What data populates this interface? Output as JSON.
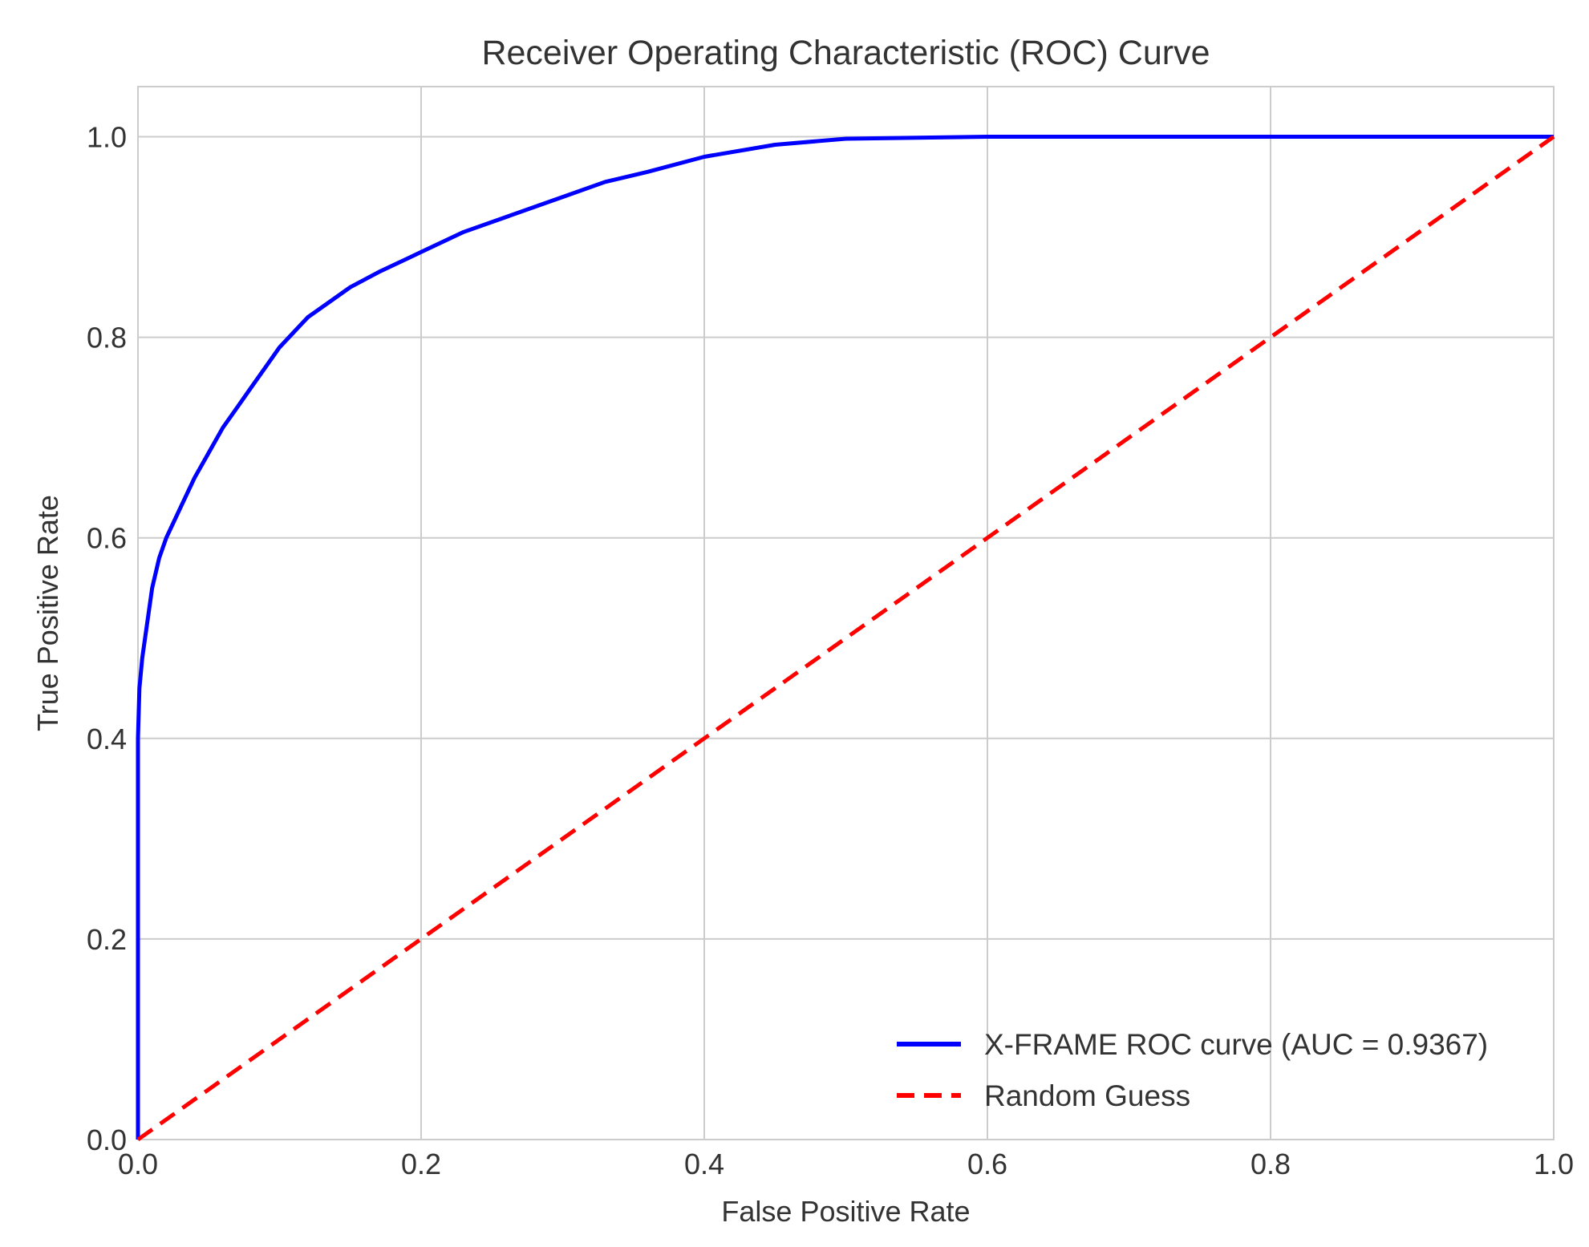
{
  "chart_data": {
    "type": "line",
    "title": "Receiver Operating Characteristic (ROC) Curve",
    "xlabel": "False Positive Rate",
    "ylabel": "True Positive Rate",
    "xlim": [
      0.0,
      1.0
    ],
    "ylim": [
      0.0,
      1.05
    ],
    "xticks": [
      0.0,
      0.2,
      0.4,
      0.6,
      0.8,
      1.0
    ],
    "xtick_labels": [
      "0.0",
      "0.2",
      "0.4",
      "0.6",
      "0.8",
      "1.0"
    ],
    "yticks": [
      0.0,
      0.2,
      0.4,
      0.6,
      0.8,
      1.0
    ],
    "ytick_labels": [
      "0.0",
      "0.2",
      "0.4",
      "0.6",
      "0.8",
      "1.0"
    ],
    "grid": true,
    "legend_position": "lower-right",
    "series": [
      {
        "name": "X-FRAME ROC curve (AUC = 0.9367)",
        "color": "#0000ff",
        "style": "solid",
        "x": [
          0.0,
          0.0,
          0.001,
          0.003,
          0.006,
          0.01,
          0.015,
          0.02,
          0.03,
          0.04,
          0.05,
          0.06,
          0.07,
          0.08,
          0.09,
          0.1,
          0.11,
          0.12,
          0.13,
          0.15,
          0.17,
          0.2,
          0.23,
          0.26,
          0.3,
          0.33,
          0.36,
          0.4,
          0.45,
          0.5,
          0.55,
          0.6,
          0.7,
          0.8,
          0.9,
          1.0
        ],
        "y": [
          0.0,
          0.4,
          0.45,
          0.48,
          0.51,
          0.55,
          0.58,
          0.6,
          0.63,
          0.66,
          0.685,
          0.71,
          0.73,
          0.75,
          0.77,
          0.79,
          0.805,
          0.82,
          0.83,
          0.85,
          0.865,
          0.885,
          0.905,
          0.92,
          0.94,
          0.955,
          0.965,
          0.98,
          0.992,
          0.998,
          0.999,
          1.0,
          1.0,
          1.0,
          1.0,
          1.0
        ]
      },
      {
        "name": "Random Guess",
        "color": "#ff0000",
        "style": "dashed",
        "x": [
          0.0,
          1.0
        ],
        "y": [
          0.0,
          1.0
        ]
      }
    ]
  }
}
